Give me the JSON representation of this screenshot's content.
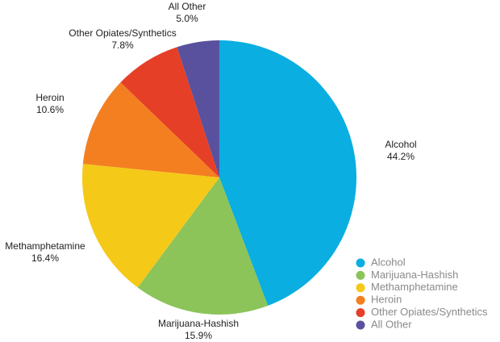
{
  "chart_data": {
    "type": "pie",
    "categories": [
      "Alcohol",
      "Marijuana-Hashish",
      "Methamphetamine",
      "Heroin",
      "Other Opiates/Synthetics",
      "All Other"
    ],
    "values": [
      44.2,
      15.9,
      16.4,
      10.6,
      7.8,
      5.0
    ],
    "value_labels": [
      "44.2%",
      "15.9%",
      "16.4%",
      "10.6%",
      "7.8%",
      "5.0%"
    ],
    "colors": [
      "#0aaee0",
      "#8cc45a",
      "#f5c918",
      "#f47f21",
      "#e53f27",
      "#59519e"
    ],
    "legend": "bottom-right"
  }
}
